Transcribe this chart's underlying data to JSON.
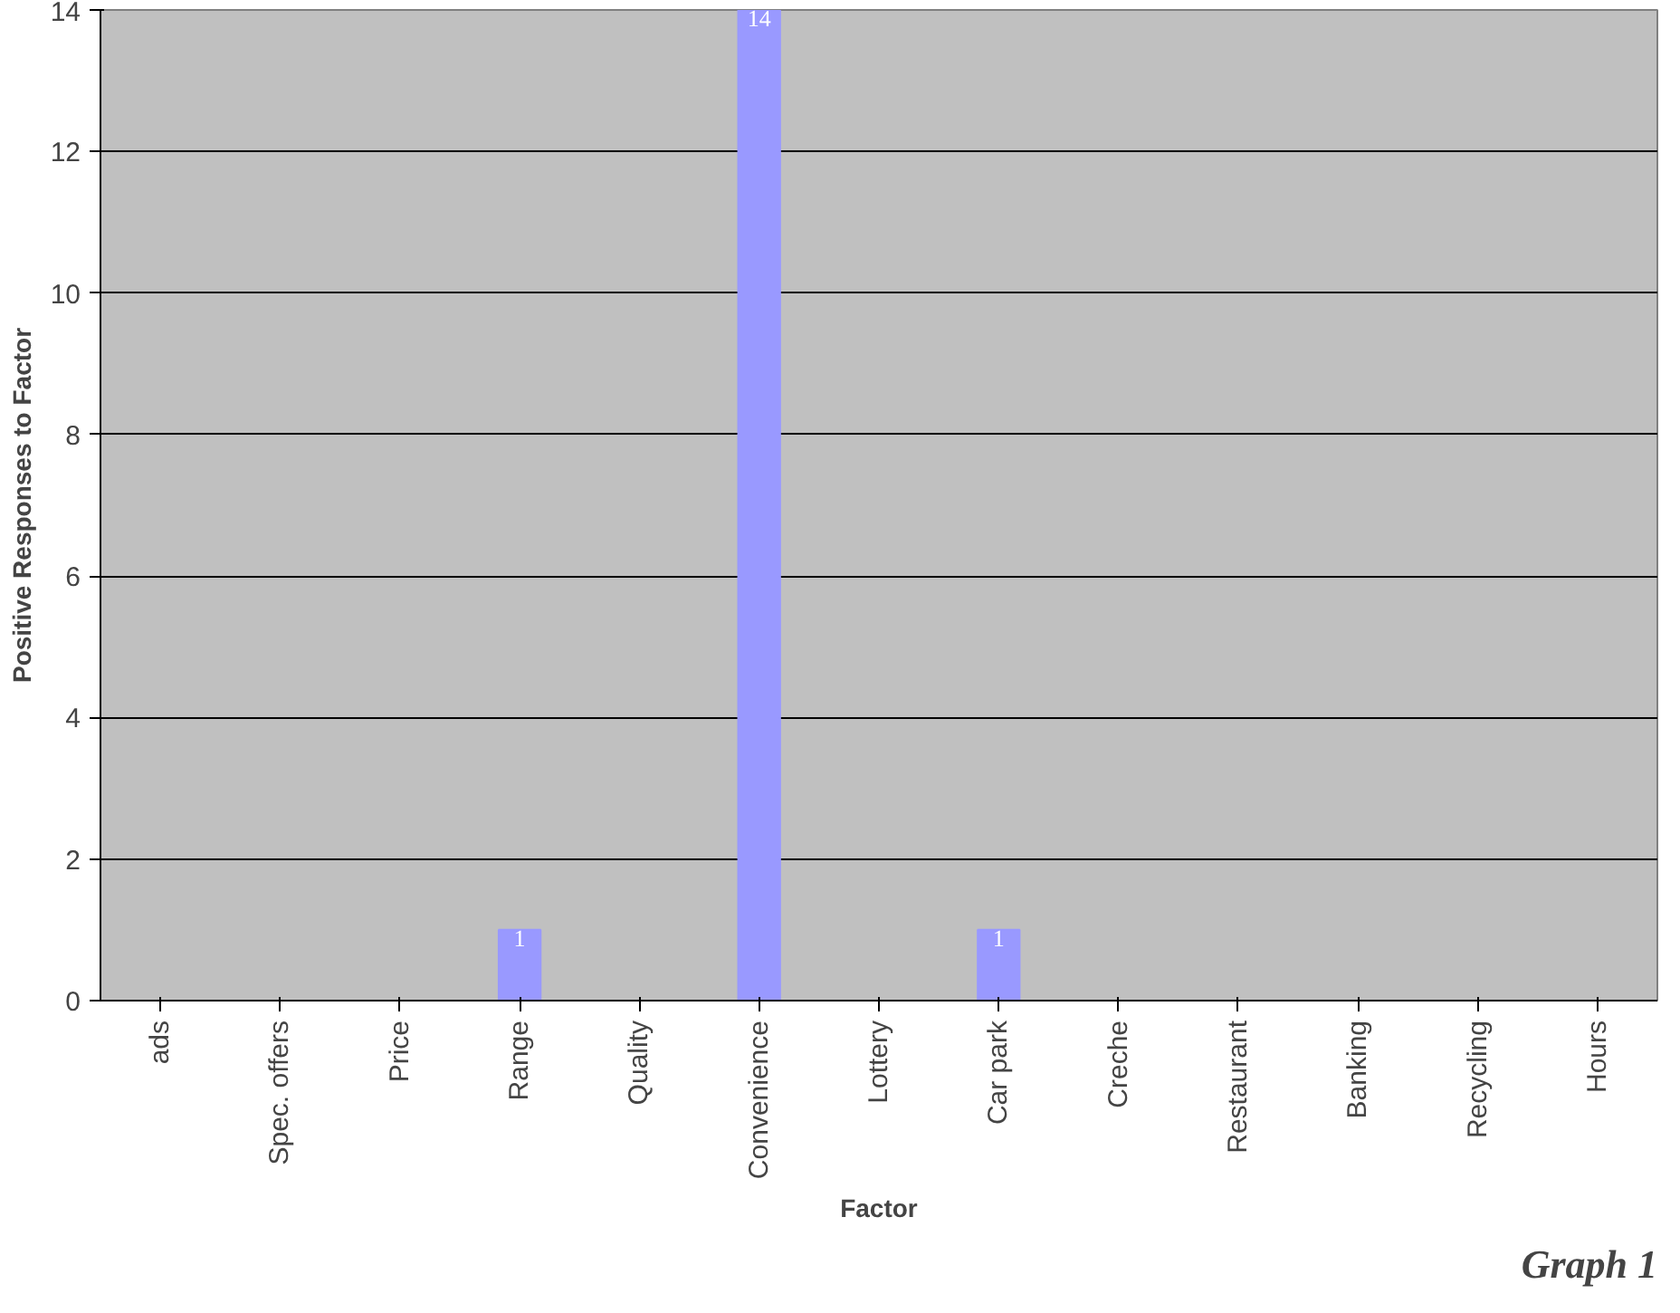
{
  "chart_data": {
    "type": "bar",
    "categories": [
      "ads",
      "Spec. offers",
      "Price",
      "Range",
      "Quality",
      "Convenience",
      "Lottery",
      "Car park",
      "Creche",
      "Restaurant",
      "Banking",
      "Recycling",
      "Hours"
    ],
    "values": [
      0,
      0,
      0,
      1,
      0,
      14,
      0,
      1,
      0,
      0,
      0,
      0,
      0
    ],
    "value_labels": [
      null,
      null,
      null,
      "1",
      null,
      "14",
      null,
      "1",
      null,
      null,
      null,
      null,
      null
    ],
    "color": "#9999ff",
    "xlabel": "Factor",
    "ylabel": "Positive Responses to Factor",
    "annotations": [
      "Graph 1"
    ],
    "ylim": [
      0,
      14
    ],
    "yticks": [
      0,
      2,
      4,
      6,
      8,
      10,
      12,
      14
    ],
    "grid": "y"
  }
}
